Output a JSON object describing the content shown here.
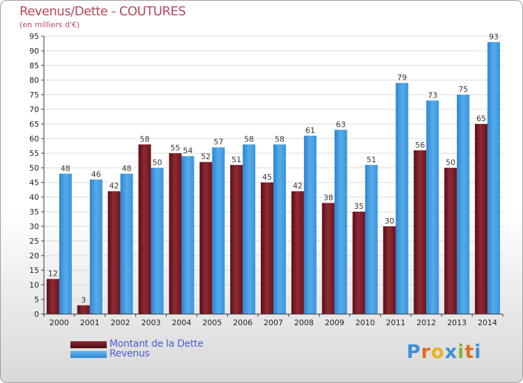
{
  "title": "Revenus/Dette - COUTURES",
  "subtitle": "(en milliers d'€)",
  "colors": {
    "dette": "#7a1c26",
    "revenus": "#3d9ae0",
    "axis": "#333333",
    "grid": "#d8d8d8",
    "title": "#b5485e",
    "legend_text": "#4a5fd0"
  },
  "legend": {
    "dette_label": "Montant de la Dette",
    "revenus_label": "Revenus"
  },
  "logo": {
    "text": "Proxiti",
    "letters": [
      "P",
      "r",
      "o",
      "x",
      "i",
      "t",
      "i"
    ],
    "letter_colors": [
      "#3d8fd6",
      "#e36b1e",
      "#e8b419",
      "#3d8fd6",
      "#7ab82e",
      "#e36b1e",
      "#3d8fd6"
    ]
  },
  "chart_data": {
    "type": "bar",
    "title": "Revenus/Dette - COUTURES",
    "ylabel": "(en milliers d'€)",
    "xlabel": "",
    "ylim": [
      0,
      95
    ],
    "ytick_step": 5,
    "grid": true,
    "categories": [
      "2000",
      "2001",
      "2002",
      "2003",
      "2004",
      "2005",
      "2006",
      "2007",
      "2008",
      "2009",
      "2010",
      "2011",
      "2012",
      "2013",
      "2014"
    ],
    "series": [
      {
        "name": "Montant de la Dette",
        "values": [
          12,
          3,
          42,
          58,
          55,
          52,
          51,
          45,
          42,
          38,
          35,
          30,
          56,
          50,
          65
        ]
      },
      {
        "name": "Revenus",
        "values": [
          48,
          46,
          48,
          50,
          54,
          57,
          58,
          58,
          61,
          63,
          51,
          79,
          73,
          75,
          93
        ]
      }
    ]
  }
}
